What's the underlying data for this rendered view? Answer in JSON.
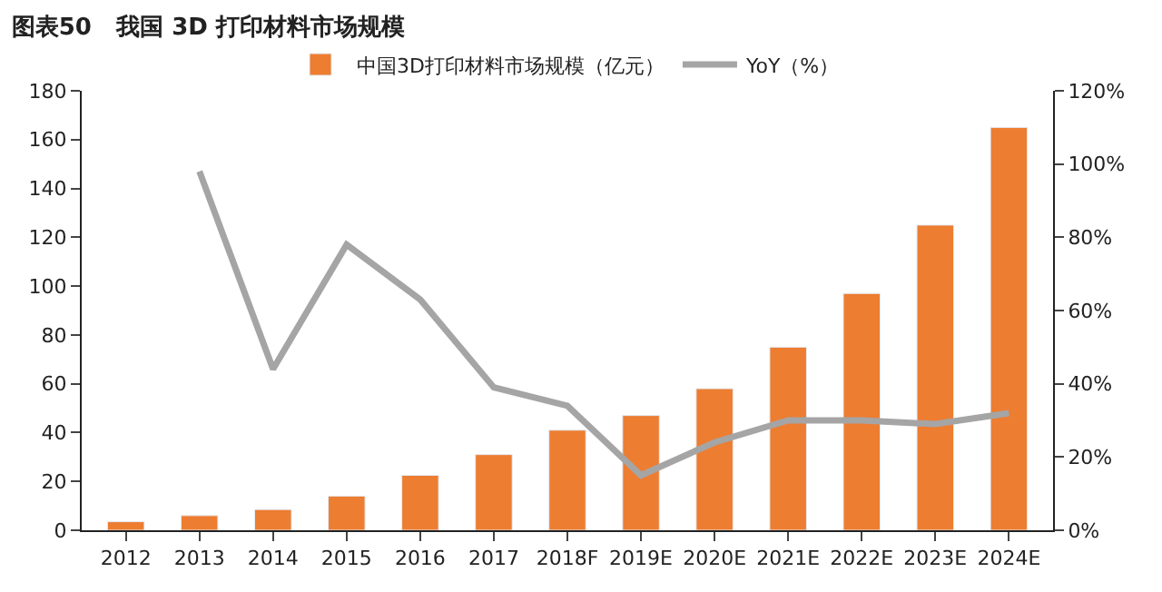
{
  "chart_data": {
    "type": "bar",
    "title": "图表50   我国 3D 打印材料市场规模",
    "categories": [
      "2012",
      "2013",
      "2014",
      "2015",
      "2016",
      "2017",
      "2018F",
      "2019E",
      "2020E",
      "2021E",
      "2022E",
      "2023E",
      "2024E"
    ],
    "series": [
      {
        "name": "中国3D打印材料市场规模（亿元）",
        "color": "#ed7d31",
        "values": [
          3.5,
          6,
          8.5,
          14,
          22.5,
          31,
          41,
          47,
          58,
          75,
          97,
          125,
          165
        ]
      },
      {
        "name": "YoY（%）",
        "type": "line",
        "axis": "y2",
        "color": "#a5a5a5",
        "values": [
          null,
          98,
          44,
          78,
          63,
          39,
          34,
          15,
          24,
          30,
          30,
          29,
          32
        ]
      }
    ],
    "ylim": [
      0,
      180
    ],
    "yticks": [
      0,
      20,
      40,
      60,
      80,
      100,
      120,
      140,
      160,
      180
    ],
    "y2lim": [
      0,
      120
    ],
    "y2ticks": [
      {
        "value": 0,
        "label": "0%"
      },
      {
        "value": 20,
        "label": "20%"
      },
      {
        "value": 40,
        "label": "40%"
      },
      {
        "value": 60,
        "label": "60%"
      },
      {
        "value": 80,
        "label": "80%"
      },
      {
        "value": 100,
        "label": "100%"
      },
      {
        "value": 120,
        "label": "120%"
      }
    ],
    "legend": "top"
  }
}
